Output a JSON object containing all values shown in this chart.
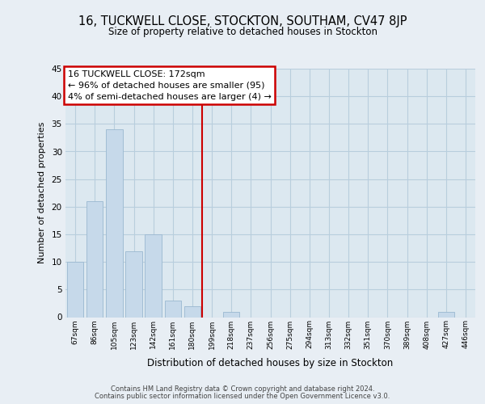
{
  "title1": "16, TUCKWELL CLOSE, STOCKTON, SOUTHAM, CV47 8JP",
  "title2": "Size of property relative to detached houses in Stockton",
  "xlabel": "Distribution of detached houses by size in Stockton",
  "ylabel": "Number of detached properties",
  "bar_labels": [
    "67sqm",
    "86sqm",
    "105sqm",
    "123sqm",
    "142sqm",
    "161sqm",
    "180sqm",
    "199sqm",
    "218sqm",
    "237sqm",
    "256sqm",
    "275sqm",
    "294sqm",
    "313sqm",
    "332sqm",
    "351sqm",
    "370sqm",
    "389sqm",
    "408sqm",
    "427sqm",
    "446sqm"
  ],
  "bar_values": [
    10,
    21,
    34,
    12,
    15,
    3,
    2,
    0,
    1,
    0,
    0,
    0,
    0,
    0,
    0,
    0,
    0,
    0,
    0,
    1,
    0
  ],
  "bar_color": "#c6d9ea",
  "bar_edge_color": "#9ab8d0",
  "vline_x": 6.5,
  "vline_color": "#cc0000",
  "ylim": [
    0,
    45
  ],
  "yticks": [
    0,
    5,
    10,
    15,
    20,
    25,
    30,
    35,
    40,
    45
  ],
  "annotation_title": "16 TUCKWELL CLOSE: 172sqm",
  "annotation_line1": "← 96% of detached houses are smaller (95)",
  "annotation_line2": "4% of semi-detached houses are larger (4) →",
  "footer_line1": "Contains HM Land Registry data © Crown copyright and database right 2024.",
  "footer_line2": "Contains public sector information licensed under the Open Government Licence v3.0.",
  "bg_color": "#e8eef4",
  "plot_bg_color": "#dce8f0",
  "grid_color": "#b8cedd",
  "annotation_box_color": "#ffffff",
  "annotation_box_edge": "#cc0000"
}
